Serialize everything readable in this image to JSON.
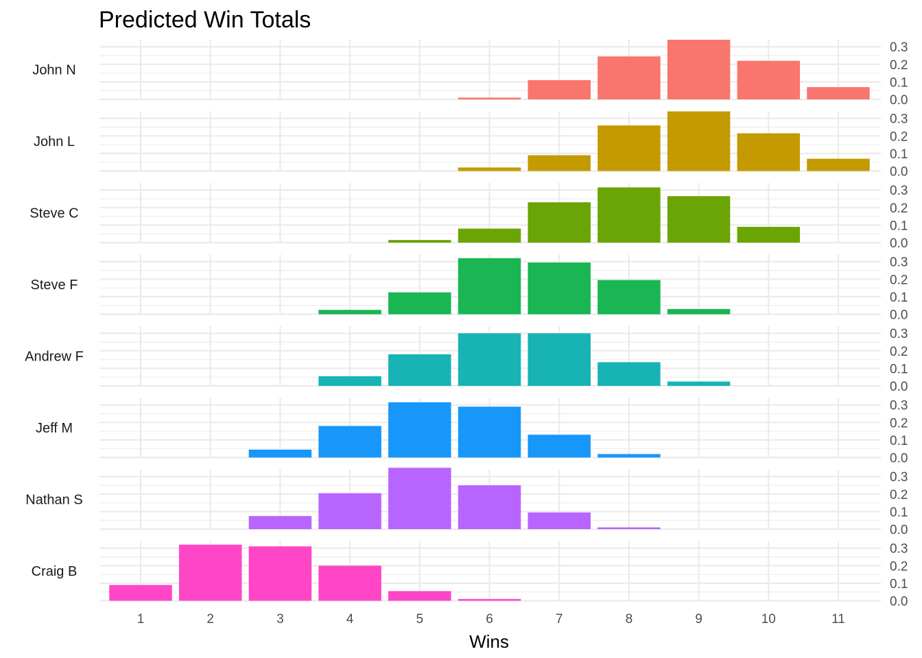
{
  "chart_data": {
    "type": "bar",
    "title": "Predicted Win Totals",
    "xlabel": "Wins",
    "ylabel": "",
    "x_ticks": [
      1,
      2,
      3,
      4,
      5,
      6,
      7,
      8,
      9,
      10,
      11
    ],
    "y_ticks": [
      "0.0",
      "0.1",
      "0.2",
      "0.3"
    ],
    "ylim": [
      0,
      0.34
    ],
    "grid": true,
    "facet_layout": "stacked rows, labels on left, y-axis on right",
    "panels": [
      {
        "name": "John N",
        "color": "#F8766D",
        "values": [
          {
            "x": 6,
            "y": 0.01
          },
          {
            "x": 7,
            "y": 0.11
          },
          {
            "x": 8,
            "y": 0.245
          },
          {
            "x": 9,
            "y": 0.34
          },
          {
            "x": 10,
            "y": 0.22
          },
          {
            "x": 11,
            "y": 0.07
          }
        ]
      },
      {
        "name": "John L",
        "color": "#C49A00",
        "values": [
          {
            "x": 6,
            "y": 0.02
          },
          {
            "x": 7,
            "y": 0.09
          },
          {
            "x": 8,
            "y": 0.26
          },
          {
            "x": 9,
            "y": 0.34
          },
          {
            "x": 10,
            "y": 0.215
          },
          {
            "x": 11,
            "y": 0.07
          }
        ]
      },
      {
        "name": "Steve C",
        "color": "#6BA505",
        "values": [
          {
            "x": 5,
            "y": 0.015
          },
          {
            "x": 6,
            "y": 0.08
          },
          {
            "x": 7,
            "y": 0.23
          },
          {
            "x": 8,
            "y": 0.315
          },
          {
            "x": 9,
            "y": 0.265
          },
          {
            "x": 10,
            "y": 0.09
          }
        ]
      },
      {
        "name": "Steve F",
        "color": "#1AB653",
        "values": [
          {
            "x": 4,
            "y": 0.025
          },
          {
            "x": 5,
            "y": 0.125
          },
          {
            "x": 6,
            "y": 0.32
          },
          {
            "x": 7,
            "y": 0.295
          },
          {
            "x": 8,
            "y": 0.195
          },
          {
            "x": 9,
            "y": 0.03
          }
        ]
      },
      {
        "name": "Andrew F",
        "color": "#18B3B5",
        "values": [
          {
            "x": 4,
            "y": 0.055
          },
          {
            "x": 5,
            "y": 0.18
          },
          {
            "x": 6,
            "y": 0.3
          },
          {
            "x": 7,
            "y": 0.3
          },
          {
            "x": 8,
            "y": 0.135
          },
          {
            "x": 9,
            "y": 0.025
          }
        ]
      },
      {
        "name": "Jeff M",
        "color": "#1897FA",
        "values": [
          {
            "x": 3,
            "y": 0.045
          },
          {
            "x": 4,
            "y": 0.18
          },
          {
            "x": 5,
            "y": 0.315
          },
          {
            "x": 6,
            "y": 0.29
          },
          {
            "x": 7,
            "y": 0.13
          },
          {
            "x": 8,
            "y": 0.02
          }
        ]
      },
      {
        "name": "Nathan S",
        "color": "#B865FF",
        "values": [
          {
            "x": 3,
            "y": 0.075
          },
          {
            "x": 4,
            "y": 0.205
          },
          {
            "x": 5,
            "y": 0.35
          },
          {
            "x": 6,
            "y": 0.25
          },
          {
            "x": 7,
            "y": 0.095
          },
          {
            "x": 8,
            "y": 0.01
          }
        ]
      },
      {
        "name": "Craig B",
        "color": "#FF46C6",
        "values": [
          {
            "x": 1,
            "y": 0.09
          },
          {
            "x": 2,
            "y": 0.32
          },
          {
            "x": 3,
            "y": 0.31
          },
          {
            "x": 4,
            "y": 0.2
          },
          {
            "x": 5,
            "y": 0.055
          },
          {
            "x": 6,
            "y": 0.01
          }
        ]
      }
    ]
  }
}
